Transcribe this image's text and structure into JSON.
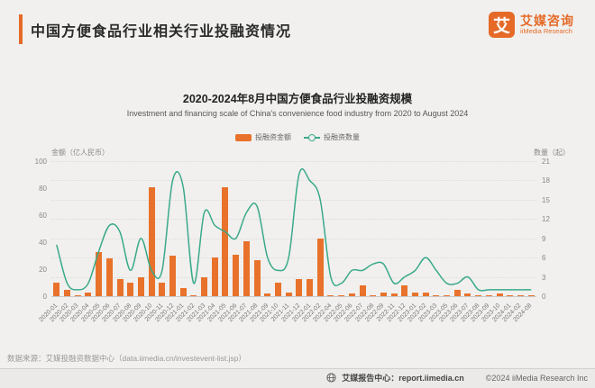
{
  "header": {
    "title": "中国方便食品行业相关行业投融资情况"
  },
  "logo": {
    "mark": "艾",
    "name_cn": "艾媒咨询",
    "name_en": "iiMedia Research"
  },
  "chart": {
    "title": "2020-2024年8月中国方便食品行业投融资规模",
    "subtitle": "Investment and financing scale of China's convenience food industry from 2020 to August 2024",
    "legend": [
      {
        "label": "投融资金额",
        "type": "bar"
      },
      {
        "label": "投融资数量",
        "type": "line"
      }
    ],
    "left_axis": {
      "name": "金额（亿人民币）",
      "ticks": [
        100,
        80,
        60,
        40,
        20,
        0
      ]
    },
    "right_axis": {
      "name": "数量（起）",
      "ticks": [
        21,
        18,
        15,
        12,
        9,
        6,
        3,
        0
      ]
    }
  },
  "chart_data": {
    "type": "combo",
    "title": "2020-2024年8月中国方便食品行业投融资规模",
    "categories": [
      "2020-01",
      "2020-02",
      "2020-03",
      "2020-04",
      "2020-05",
      "2020-06",
      "2020-07",
      "2020-08",
      "2020-09",
      "2020-10",
      "2020-11",
      "2020-12",
      "2021-01",
      "2021-02",
      "2021-03",
      "2021-04",
      "2021-05",
      "2021-06",
      "2021-07",
      "2021-08",
      "2021-09",
      "2021-10",
      "2021-11",
      "2021-12",
      "2022-01",
      "2022-02",
      "2022-04",
      "2022-05",
      "2022-06",
      "2022-07",
      "2022-08",
      "2022-09",
      "2022-11",
      "2022-12",
      "2023-01",
      "2023-02",
      "2023-03",
      "2023-05",
      "2023-06",
      "2023-07",
      "2023-08",
      "2023-09",
      "2023-10",
      "2024-01",
      "2024-02",
      "2024-08"
    ],
    "series": [
      {
        "name": "投融资金额",
        "type": "bar",
        "axis": "left",
        "unit": "亿人民币",
        "color": "#e8722b",
        "values": [
          10,
          5,
          1,
          3,
          33,
          28,
          13,
          10,
          14,
          81,
          10,
          30,
          6,
          1,
          14,
          29,
          81,
          31,
          41,
          27,
          2,
          10,
          3,
          13,
          13,
          43,
          1,
          1,
          2,
          8,
          1,
          3,
          2,
          8,
          3,
          3,
          1,
          1,
          5,
          2,
          1,
          1,
          2,
          1,
          1,
          1
        ]
      },
      {
        "name": "投融资数量",
        "type": "line",
        "axis": "right",
        "unit": "起",
        "color": "#3aa98a",
        "values": [
          8,
          2,
          1,
          2,
          7,
          11,
          10,
          4,
          9,
          4,
          4,
          18,
          17,
          2,
          13,
          11,
          10,
          9,
          13,
          14,
          6,
          4,
          6,
          19,
          18,
          15,
          3,
          2,
          4,
          4,
          5,
          5,
          2,
          3,
          4,
          6,
          4,
          2,
          2,
          3,
          1,
          1,
          1,
          1,
          1,
          1
        ]
      }
    ],
    "left_ylabel": "金额（亿人民币）",
    "right_ylabel": "数量（起）",
    "left_ylim": [
      0,
      100
    ],
    "right_ylim": [
      0,
      21
    ],
    "grid": true,
    "legend_position": "top-center"
  },
  "source_note": "数据来源：艾媒投融资数据中心（data.iimedia.cn/investevent-list.jsp）",
  "footer": {
    "report_center": "艾媒报告中心：report.iimedia.cn",
    "copyright": "©2024  iiMedia Research Inc"
  },
  "colors": {
    "accent": "#e56a28",
    "bar": "#e8722b",
    "line": "#3aa98a"
  }
}
